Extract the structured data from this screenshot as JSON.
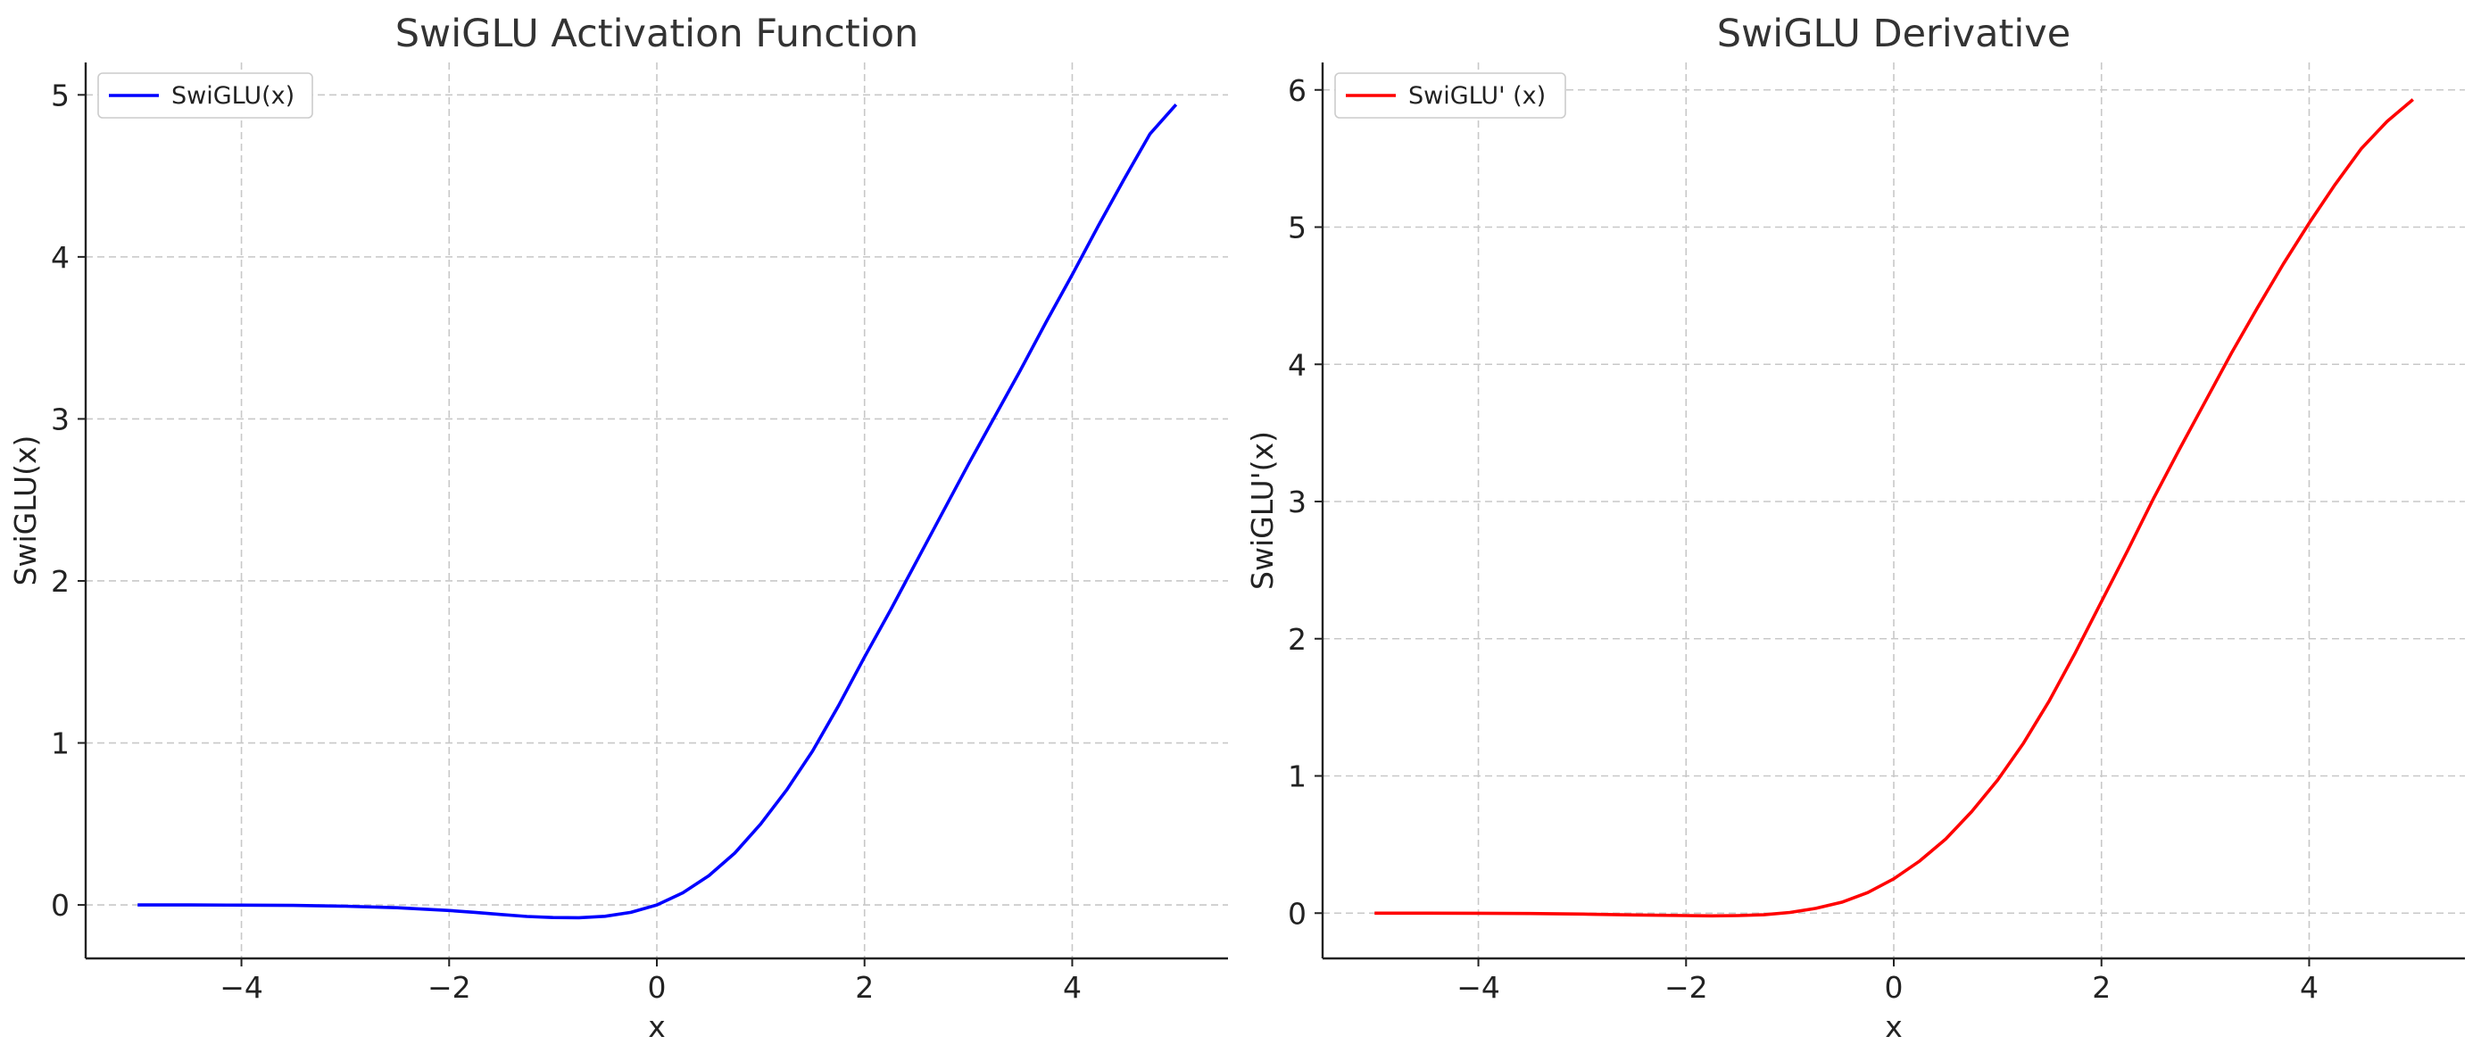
{
  "chart_data": [
    {
      "type": "line",
      "title": "SwiGLU Activation Function",
      "xlabel": "x",
      "ylabel": "SwiGLU(x)",
      "xlim": [
        -5.5,
        5.5
      ],
      "ylim": [
        -0.33,
        5.2
      ],
      "xticks": [
        -4,
        -2,
        0,
        2,
        4
      ],
      "xtick_labels": [
        "−4",
        "−2",
        "0",
        "2",
        "4"
      ],
      "yticks": [
        0,
        1,
        2,
        3,
        4,
        5
      ],
      "ytick_labels": [
        "0",
        "1",
        "2",
        "3",
        "4",
        "5"
      ],
      "grid": true,
      "legend_position": "top-left",
      "series": [
        {
          "name": "SwiGLU(x)",
          "color": "#0000ff",
          "x": [
            -5,
            -4.5,
            -4,
            -3.5,
            -3,
            -2.5,
            -2,
            -1.75,
            -1.5,
            -1.25,
            -1,
            -0.75,
            -0.5,
            -0.25,
            0,
            0.25,
            0.5,
            0.75,
            1,
            1.25,
            1.5,
            1.75,
            2,
            2.25,
            2.5,
            2.75,
            3,
            3.25,
            3.5,
            3.75,
            4,
            4.25,
            4.5,
            4.75,
            5
          ],
          "y": [
            0,
            0,
            -0.001,
            -0.003,
            -0.008,
            -0.017,
            -0.034,
            -0.046,
            -0.059,
            -0.071,
            -0.078,
            -0.079,
            -0.07,
            -0.046,
            0,
            0.075,
            0.18,
            0.32,
            0.5,
            0.71,
            0.95,
            1.23,
            1.53,
            1.82,
            2.12,
            2.42,
            2.72,
            3.01,
            3.3,
            3.6,
            3.89,
            4.19,
            4.48,
            4.76,
            4.94
          ]
        }
      ]
    },
    {
      "type": "line",
      "title": "SwiGLU Derivative",
      "xlabel": "x",
      "ylabel": "SwiGLU'(x)",
      "xlim": [
        -5.5,
        5.5
      ],
      "ylim": [
        -0.33,
        6.2
      ],
      "xticks": [
        -4,
        -2,
        0,
        2,
        4
      ],
      "xtick_labels": [
        "−4",
        "−2",
        "0",
        "2",
        "4"
      ],
      "yticks": [
        0,
        1,
        2,
        3,
        4,
        5,
        6
      ],
      "ytick_labels": [
        "0",
        "1",
        "2",
        "3",
        "4",
        "5",
        "6"
      ],
      "grid": true,
      "legend_position": "top-left",
      "series": [
        {
          "name": "SwiGLU' (x)",
          "color": "#ff0000",
          "x": [
            -5,
            -4.5,
            -4,
            -3.5,
            -3,
            -2.5,
            -2,
            -1.75,
            -1.5,
            -1.25,
            -1,
            -0.75,
            -0.5,
            -0.25,
            0,
            0.25,
            0.5,
            0.75,
            1,
            1.25,
            1.5,
            1.75,
            2,
            2.25,
            2.5,
            2.75,
            3,
            3.25,
            3.5,
            3.75,
            4,
            4.25,
            4.5,
            4.75,
            5
          ],
          "y": [
            0,
            0,
            -0.001,
            -0.003,
            -0.007,
            -0.013,
            -0.018,
            -0.02,
            -0.018,
            -0.012,
            0.005,
            0.035,
            0.08,
            0.15,
            0.25,
            0.38,
            0.54,
            0.74,
            0.97,
            1.24,
            1.55,
            1.9,
            2.27,
            2.64,
            3.02,
            3.38,
            3.73,
            4.08,
            4.41,
            4.73,
            5.03,
            5.31,
            5.57,
            5.77,
            5.93
          ]
        }
      ]
    }
  ]
}
